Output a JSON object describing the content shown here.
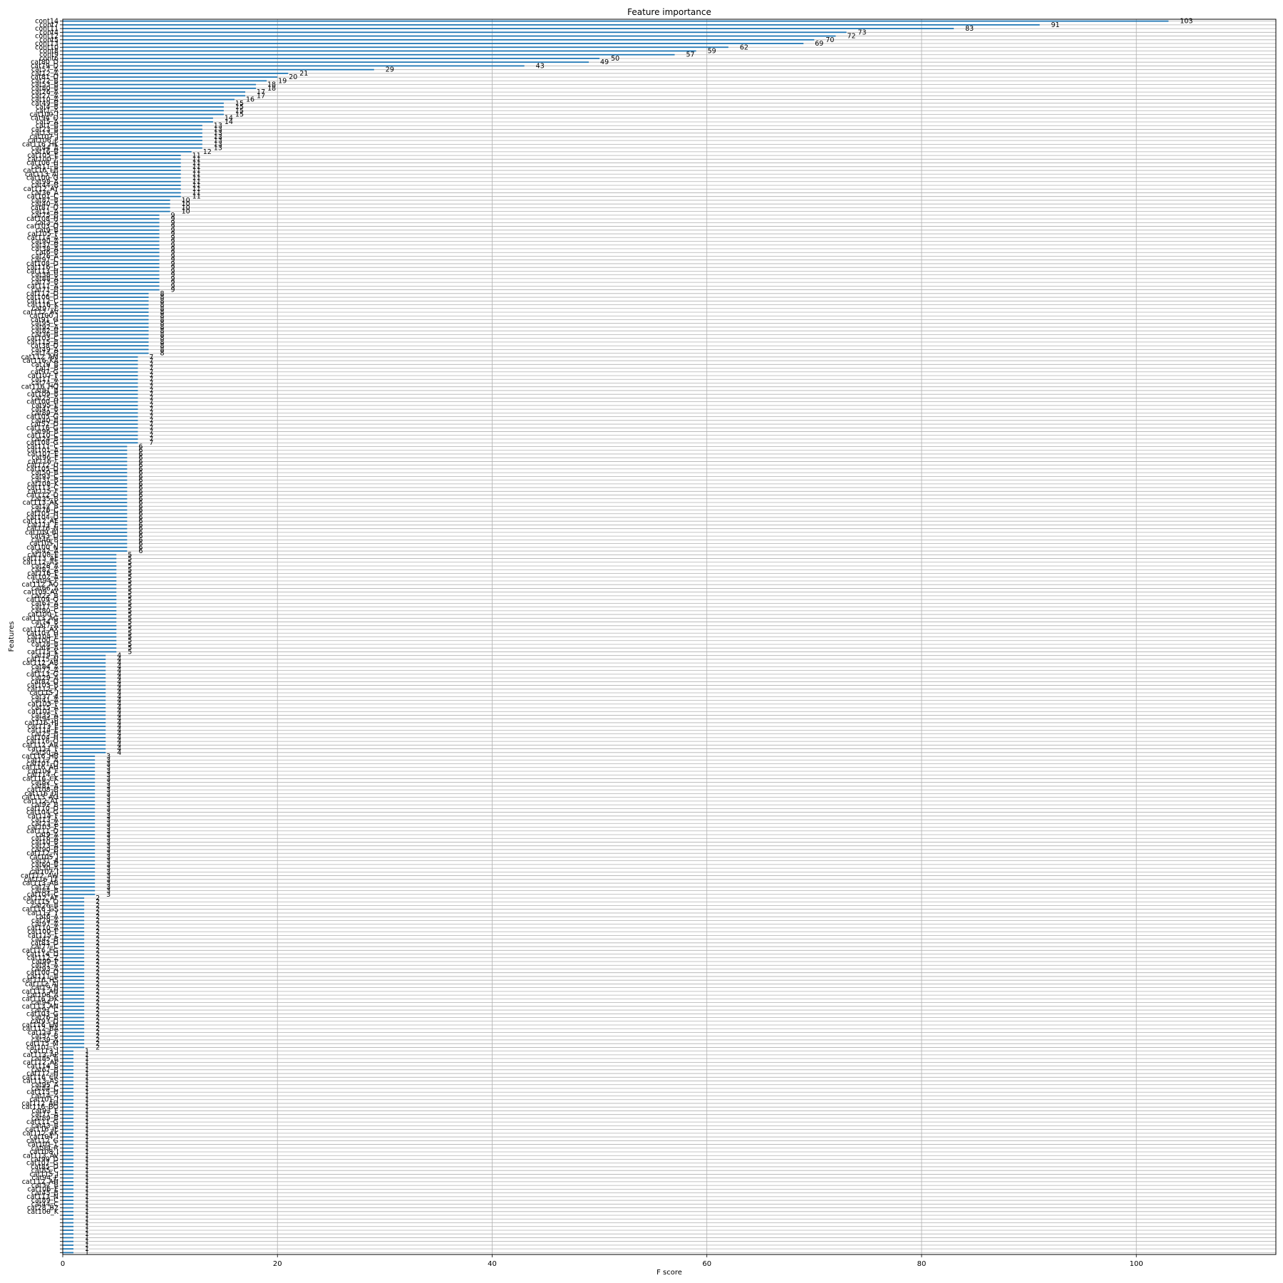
{
  "chart_data": {
    "type": "bar",
    "orientation": "horizontal",
    "title": "Feature importance",
    "xlabel": "F score",
    "ylabel": "Features",
    "xlim": [
      0,
      113
    ],
    "xticks": [
      0,
      20,
      40,
      60,
      80,
      100
    ],
    "grid": true,
    "bar_color": "#1f77b4",
    "data_labels": true,
    "categories_top_to_bottom": [
      "cont14",
      "cont7",
      "cont11",
      "cont4",
      "cont12",
      "cont5",
      "cont13",
      "cont10",
      "cont8",
      "cont9",
      "cont6",
      "cat80_D",
      "cat79_D",
      "cat57_A",
      "cat12_A",
      "cat81_D",
      "cat72_B",
      "cat53_B",
      "cat80_B",
      "cat26_A",
      "cat27_A",
      "cat10_A",
      "cat49_B",
      "cat4_B",
      "cat1_A",
      "cat100_I",
      "cat94_D",
      "cat5_A",
      "cat1_B",
      "cat23_B",
      "cat13_B",
      "cat107_J",
      "cat106_F",
      "cat116_HK",
      "cat44_A",
      "cat16_B",
      "cat105_E",
      "cat100_F",
      "cat106_H",
      "cat11_B",
      "cat116_LB",
      "cat113_AJ",
      "cat100_G",
      "cat98_A",
      "cat44_B",
      "cat112_AY",
      "cat36_A",
      "cat101_C",
      "cat87_B",
      "cat40_A",
      "cat87_D",
      "cat11_A",
      "cat75_B",
      "cat108_H",
      "cat3_A",
      "cat103_D",
      "cat9_B",
      "cat105_F",
      "cat114_A",
      "cat90_A",
      "cat37_B",
      "cat38_A",
      "cat6_B",
      "cat76_A",
      "cat97_C",
      "cat108_D",
      "cat116_C",
      "cat113_H",
      "cat38_B",
      "cat88_A",
      "cat73_B",
      "cat111_A",
      "cat71_B",
      "cat112_D",
      "cat106_D",
      "cat112_C",
      "cat116_K",
      "cat97_E",
      "cat112_AV",
      "cat100_J",
      "cat91_G",
      "cat95_C",
      "cat92_A",
      "cat82_B",
      "cat36_B",
      "cat103_C",
      "cat115_B",
      "cat38_D",
      "cat49_A",
      "cat14_B",
      "cat112_AM",
      "cat116_KA",
      "cat79_B",
      "cat7_B",
      "cat97_G",
      "cat107_F",
      "cat17_A",
      "cat74_A",
      "cat116_HQ",
      "cat81_B",
      "cat109_B",
      "cat25_A",
      "cat100_H",
      "cat95_E",
      "cat41_B",
      "cat89_A",
      "cat105_G",
      "cat40_B",
      "cat52_D",
      "cat116_G",
      "cat96_B",
      "cat110_C",
      "cat24_B",
      "cat108_G",
      "cat111_C",
      "cat101_A",
      "cat107_E",
      "cat96_E",
      "cat116_L",
      "cat112_U",
      "cat105_D",
      "cat50_B",
      "cat93_C",
      "cat31_B",
      "cat108_K",
      "cat113_C",
      "cat115_F",
      "cat112_D",
      "cat35_B",
      "cat113_AK",
      "cat12_B",
      "cat76_C",
      "cat105_H",
      "cat104_D",
      "cat112_AE",
      "cat111_E",
      "cat116_N",
      "cat109_BI",
      "cat43_D",
      "cat46_B",
      "cat105_I",
      "cat100_N",
      "cat42_A",
      "cat108_E",
      "cat113_AE",
      "cat112_AS",
      "cat28_A",
      "cat82_A",
      "cat116_E",
      "cat102_A",
      "cat94_F",
      "cat112_AO",
      "cat66_A",
      "cat109_AY",
      "cat22_B",
      "cat109_Q",
      "cat67_A",
      "cat17_B",
      "cat80_C",
      "cat100_L",
      "cat113_AG",
      "cat74_B",
      "cat7_A",
      "cat113_AX",
      "cat107_H",
      "cat104_E",
      "cat100_C",
      "cat28_B",
      "cat4_A",
      "cat115_K",
      "cat19_A",
      "cat115_N",
      "cat112_AB",
      "cat84_A",
      "cat72_A",
      "cat113_G",
      "cat29_A",
      "cat82_D",
      "cat103_B",
      "cat112_K",
      "cat115_J",
      "cat37_A",
      "cat41_A",
      "cat103_F",
      "cat15_A",
      "cat101_F",
      "cat35_A",
      "cat94_B",
      "cat116_HJ",
      "cat113_E",
      "cat114_E",
      "cat25_B",
      "cat104_H",
      "cat116_O",
      "cat112_AR",
      "cat111_F",
      "cat50_A",
      "cat116_HB",
      "cat112_A",
      "cat101_D",
      "cat116_AH",
      "cat104_F",
      "cat114_C",
      "cat116_CK",
      "cat82_C",
      "cat81_A",
      "cat108_B",
      "cat116_DJ",
      "cat113_AO",
      "cat112_AT",
      "cat92_B",
      "cat110_D",
      "cat104_G",
      "cat114_F",
      "cat13_A",
      "cat23_A",
      "cat103_E",
      "cat111_D",
      "cat9_A",
      "cat16_A",
      "cat10_B",
      "cat73_A",
      "cat90_B",
      "cat112_N",
      "cat105_J",
      "cat31_A",
      "cat60_B",
      "cat30_A",
      "cat107_I",
      "cat112_AW",
      "cat116_LF",
      "cat113_AB",
      "cat72_C",
      "cat84_B",
      "cat104_C",
      "cat112_AF",
      "cat115_O",
      "cat26_B",
      "cat116_GS",
      "cat112_Y",
      "cat6_A",
      "cat79_A",
      "cat97_A",
      "cat110_A",
      "cat100_E",
      "cat115_L",
      "cat42_B",
      "cat83_D",
      "cat77_C",
      "cat116_EG",
      "cat114_D",
      "cat112_Z",
      "cat99_P",
      "cat91_A",
      "cat93_A",
      "cat100_D",
      "cat111_B",
      "cat116_HS",
      "cat112_AJ",
      "cat19_B",
      "cat113_AH",
      "cat108_A",
      "cat116_DK",
      "cat94_C",
      "cat113_AN",
      "cat91_C",
      "cat103_G",
      "cat76_B",
      "cat93_D",
      "cat116_LM",
      "cat112_BA",
      "cat113_F",
      "cat57_B",
      "cat39_A",
      "cat115_M",
      "cat101_G",
      "cat113_I",
      "cat113_AP",
      "cat85_B",
      "cat112_AP",
      "cat114_B",
      "cat67_B",
      "cat112_H",
      "cat116_CR",
      "cat113_AS",
      "cat95_A",
      "cat84_C",
      "cat115_H",
      "cat14_A",
      "cat101_J",
      "cat112_AD",
      "cat116_BO",
      "cat93_E",
      "cat71_A",
      "cat89_B",
      "cat111_G",
      "cat43_B",
      "cat116_IE",
      "cat112_AK",
      "cat104_I",
      "cat112_G",
      "cat101_L",
      "cat99_R",
      "cat108_I",
      "cat113_AV",
      "cat99_D",
      "cat107_G",
      "cat85_D",
      "cat85_C",
      "cat115_I",
      "cat94_E",
      "cat112_AH",
      "cat32_B",
      "cat106_E",
      "cat45_B",
      "cat113_N",
      "cat89_C",
      "cat44_C",
      "cat28_B2",
      "cat100_K"
    ],
    "values_top_to_bottom": [
      103,
      91,
      83,
      73,
      72,
      70,
      69,
      62,
      59,
      57,
      50,
      49,
      43,
      29,
      21,
      20,
      19,
      18,
      18,
      17,
      17,
      16,
      15,
      15,
      15,
      15,
      14,
      14,
      13,
      13,
      13,
      13,
      13,
      13,
      13,
      12,
      11,
      11,
      11,
      11,
      11,
      11,
      11,
      11,
      11,
      11,
      11,
      11,
      10,
      10,
      10,
      10,
      9,
      9,
      9,
      9,
      9,
      9,
      9,
      9,
      9,
      9,
      9,
      9,
      9,
      9,
      9,
      9,
      9,
      9,
      9,
      9,
      9,
      8,
      8,
      8,
      8,
      8,
      8,
      8,
      8,
      8,
      8,
      8,
      8,
      8,
      8,
      8,
      8,
      8,
      7,
      7,
      7,
      7,
      7,
      7,
      7,
      7,
      7,
      7,
      7,
      7,
      7,
      7,
      7,
      7,
      7,
      7,
      7,
      7,
      7,
      7,
      7,
      7,
      6,
      6,
      6,
      6,
      6,
      6,
      6,
      6,
      6,
      6,
      6,
      6,
      6,
      6,
      6,
      6,
      6,
      6,
      6,
      6,
      6,
      6,
      6,
      6,
      6,
      6,
      6,
      6,
      6,
      5,
      5,
      5,
      5,
      5,
      5,
      5,
      5,
      5,
      5,
      5,
      5,
      5,
      5,
      5,
      5,
      5,
      5,
      5,
      5,
      5,
      5,
      5,
      5,
      5,
      5,
      5,
      4,
      4,
      4,
      4,
      4,
      4,
      4,
      4,
      4,
      4,
      4,
      4,
      4,
      4,
      4,
      4,
      4,
      4,
      4,
      4,
      4,
      4,
      4,
      4,
      4,
      4,
      4,
      3,
      3,
      3,
      3,
      3,
      3,
      3,
      3,
      3,
      3,
      3,
      3,
      3,
      3,
      3,
      3,
      3,
      3,
      3,
      3,
      3,
      3,
      3,
      3,
      3,
      3,
      3,
      3,
      3,
      3,
      3,
      3,
      3,
      3,
      3,
      3,
      3,
      3,
      2,
      2,
      2,
      2,
      2,
      2,
      2,
      2,
      2,
      2,
      2,
      2,
      2,
      2,
      2,
      2,
      2,
      2,
      2,
      2,
      2,
      2,
      2,
      2,
      2,
      2,
      2,
      2,
      2,
      2,
      2,
      2,
      2,
      2,
      2,
      2,
      2,
      2,
      2,
      2,
      2,
      1,
      1,
      1,
      1,
      1,
      1,
      1,
      1,
      1,
      1,
      1,
      1,
      1,
      1,
      1,
      1,
      1,
      1,
      1,
      1,
      1,
      1,
      1,
      1,
      1,
      1,
      1,
      1,
      1,
      1,
      1,
      1,
      1,
      1,
      1,
      1,
      1,
      1,
      1,
      1,
      1,
      1,
      1,
      1,
      1,
      1,
      1,
      1,
      1,
      1,
      1,
      1,
      1,
      1,
      1
    ]
  }
}
